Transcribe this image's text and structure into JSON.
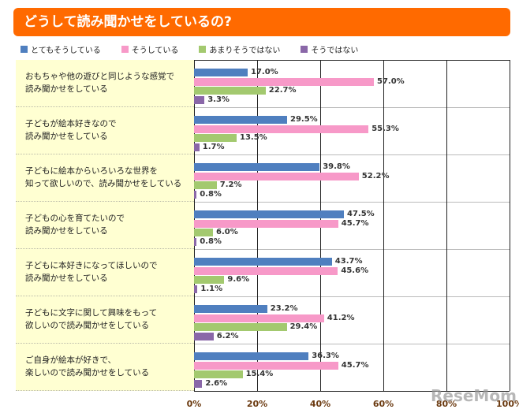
{
  "chart_data": {
    "type": "bar",
    "title": "どうして読み聞かせをしているの?",
    "categories": [
      "おもちゃや他の遊びと同じような感覚で\n読み聞かせをしている",
      "子どもが絵本好きなので\n読み聞かせをしている",
      "子どもに絵本からいろいろな世界を\n知って欲しいので、読み聞かせをしている",
      "子どもの心を育てたいので\n読み聞かせをしている",
      "子どもに本好きになってほしいので\n読み聞かせをしている",
      "子どもに文字に関して興味をもって\n欲しいので読み聞かせをしている",
      "ご自身が絵本が好きで、\n楽しいので読み聞かせをしている"
    ],
    "series": [
      {
        "name": "とてもそうしている",
        "color": "#4f7fbf",
        "values": [
          17.0,
          29.5,
          39.8,
          47.5,
          43.7,
          23.2,
          36.3
        ]
      },
      {
        "name": "そうしている",
        "color": "#f799c8",
        "values": [
          57.0,
          55.3,
          52.2,
          45.7,
          45.6,
          41.2,
          45.7
        ]
      },
      {
        "name": "あまりそうではない",
        "color": "#a3c96f",
        "values": [
          22.7,
          13.5,
          7.2,
          6.0,
          9.6,
          29.4,
          15.4
        ]
      },
      {
        "name": "そうではない",
        "color": "#8a67a8",
        "values": [
          3.3,
          1.7,
          0.8,
          0.8,
          1.1,
          6.2,
          2.6
        ]
      }
    ],
    "xlim": [
      0,
      100
    ],
    "xticks": [
      "0%",
      "20%",
      "40%",
      "60%",
      "80%",
      "100%"
    ],
    "legend": "top"
  },
  "watermark": "ReseMom"
}
